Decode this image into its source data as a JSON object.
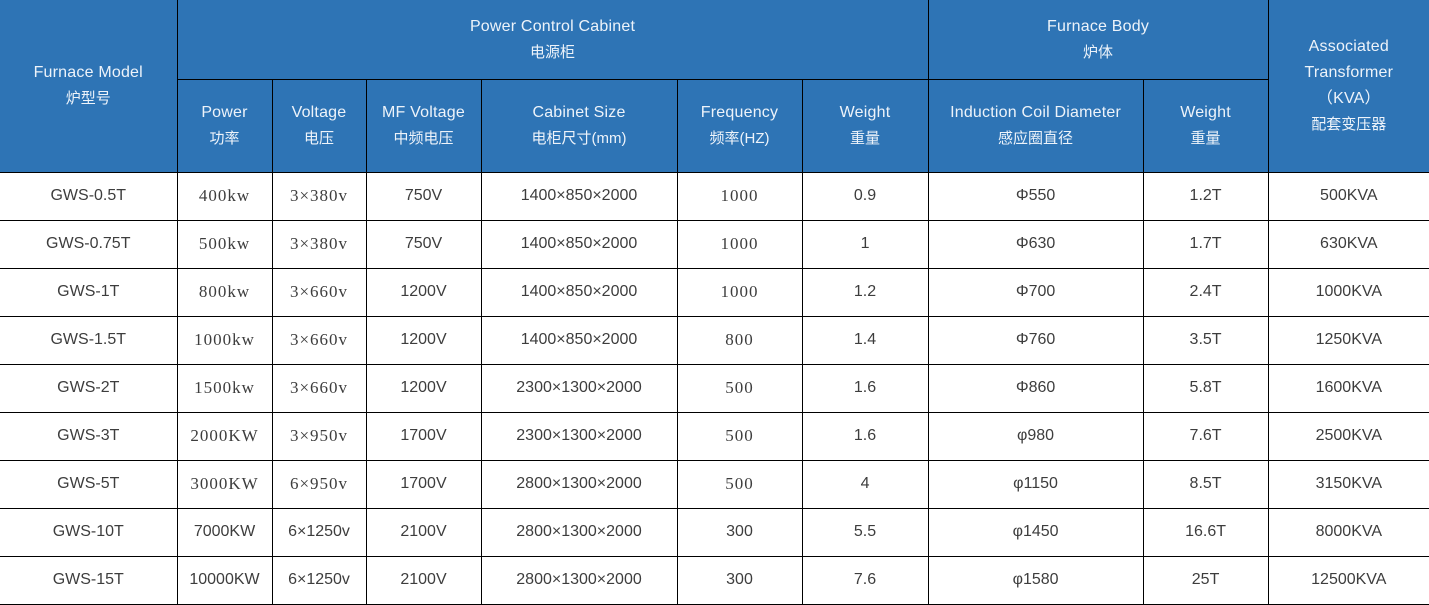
{
  "table": {
    "header": {
      "furnace_model": {
        "en": "Furnace Model",
        "zh": "炉型号"
      },
      "power_control_cabinet": {
        "en": "Power Control Cabinet",
        "zh": "电源柜"
      },
      "furnace_body": {
        "en": "Furnace Body",
        "zh": "炉体"
      },
      "associated_transformer": {
        "line1": "Associated",
        "line2": "Transformer",
        "line3": "（KVA）",
        "line4": "配套变压器"
      },
      "sub_columns": [
        {
          "en": "Power",
          "zh": "功率"
        },
        {
          "en": "Voltage",
          "zh": "电压"
        },
        {
          "en": "MF Voltage",
          "zh": "中频电压"
        },
        {
          "en": "Cabinet Size",
          "zh": "电柜尺寸(mm)"
        },
        {
          "en": "Frequency",
          "zh": "频率(HZ)"
        },
        {
          "en": "Weight",
          "zh": "重量"
        },
        {
          "en": "Induction Coil Diameter",
          "zh": "感应圈直径"
        },
        {
          "en": "Weight",
          "zh": "重量"
        }
      ]
    },
    "rows": [
      [
        "GWS-0.5T",
        "400kw",
        "3×380v",
        "750V",
        "1400×850×2000",
        "1000",
        "0.9",
        "Φ550",
        "1.2T",
        "500KVA"
      ],
      [
        "GWS-0.75T",
        "500kw",
        "3×380v",
        "750V",
        "1400×850×2000",
        "1000",
        "1",
        "Φ630",
        "1.7T",
        "630KVA"
      ],
      [
        "GWS-1T",
        "800kw",
        "3×660v",
        "1200V",
        "1400×850×2000",
        "1000",
        "1.2",
        "Φ700",
        "2.4T",
        "1000KVA"
      ],
      [
        "GWS-1.5T",
        "1000kw",
        "3×660v",
        "1200V",
        "1400×850×2000",
        "800",
        "1.4",
        "Φ760",
        "3.5T",
        "1250KVA"
      ],
      [
        "GWS-2T",
        "1500kw",
        "3×660v",
        "1200V",
        "2300×1300×2000",
        "500",
        "1.6",
        "Φ860",
        "5.8T",
        "1600KVA"
      ],
      [
        "GWS-3T",
        "2000KW",
        "3×950v",
        "1700V",
        "2300×1300×2000",
        "500",
        "1.6",
        "φ980",
        "7.6T",
        "2500KVA"
      ],
      [
        "GWS-5T",
        "3000KW",
        "6×950v",
        "1700V",
        "2800×1300×2000",
        "500",
        "4",
        "φ1150",
        "8.5T",
        "3150KVA"
      ],
      [
        "GWS-10T",
        "7000KW",
        "6×1250v",
        "2100V",
        "2800×1300×2000",
        "300",
        "5.5",
        "φ1450",
        "16.6T",
        "8000KVA"
      ],
      [
        "GWS-15T",
        "10000KW",
        "6×1250v",
        "2100V",
        "2800×1300×2000",
        "300",
        "7.6",
        "φ1580",
        "25T",
        "12500KVA"
      ]
    ],
    "colors": {
      "header_bg": "#2e74b5",
      "header_text": "#edf3fa",
      "border": "#000000",
      "body_text": "#3d3d3d"
    }
  }
}
